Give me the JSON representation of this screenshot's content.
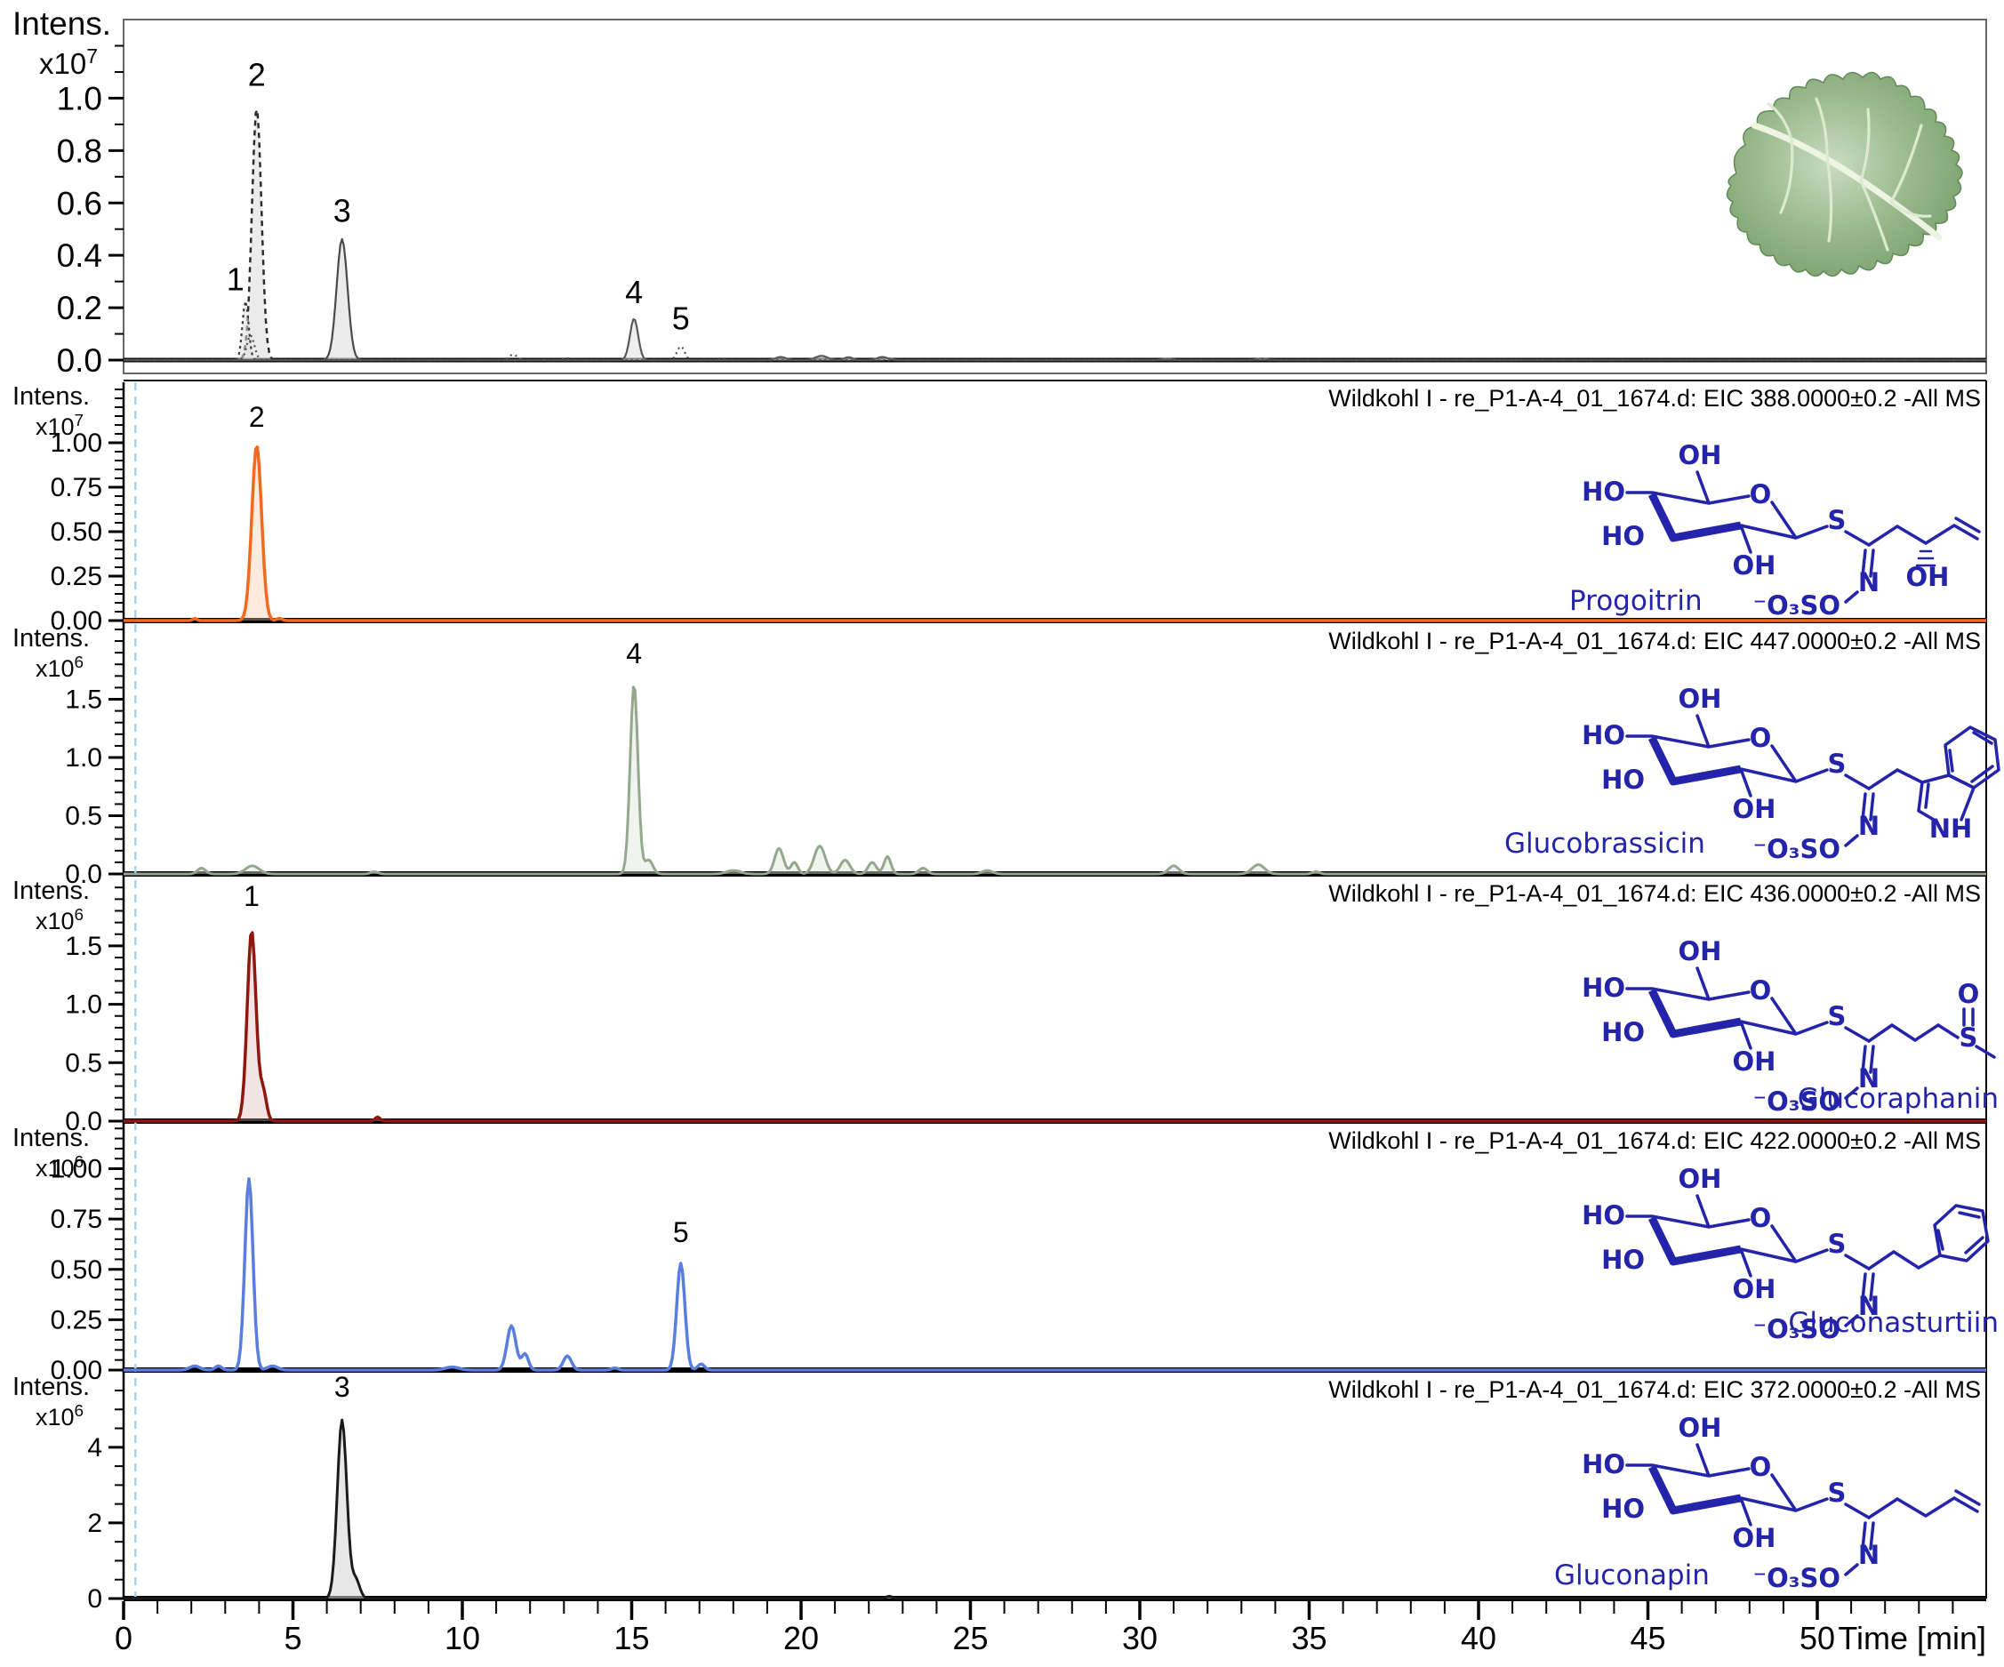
{
  "chart_data": {
    "type": "line",
    "description": "LC-MS extracted ion chromatograms (EIC) of glucosinolates in wild cabbage",
    "xaxis": {
      "label": "Time [min]",
      "range": [
        0,
        55
      ],
      "minor_step": 1,
      "ticks": [
        {
          "t": 0,
          "label": "0"
        },
        {
          "t": 5,
          "label": "5"
        },
        {
          "t": 10,
          "label": "10"
        },
        {
          "t": 15,
          "label": "15"
        },
        {
          "t": 20,
          "label": "20"
        },
        {
          "t": 25,
          "label": "25"
        },
        {
          "t": 30,
          "label": "30"
        },
        {
          "t": 35,
          "label": "35"
        },
        {
          "t": 40,
          "label": "40"
        },
        {
          "t": 45,
          "label": "45"
        },
        {
          "t": 50,
          "label": "50"
        }
      ]
    },
    "blue_marker_time": 0.35,
    "blue_marker_color": "#a6d3f2",
    "panels": [
      {
        "id": "overview",
        "axis_label": "Intens.",
        "unit_prefix": "x10",
        "unit_exp": "7",
        "minor": 0.1,
        "yticks": [
          {
            "v": 1.0,
            "label": "1.0"
          },
          {
            "v": 0.8,
            "label": "0.8"
          },
          {
            "v": 0.6,
            "label": "0.6"
          },
          {
            "v": 0.4,
            "label": "0.4"
          },
          {
            "v": 0.2,
            "label": "0.2"
          },
          {
            "v": 0.0,
            "label": "0.0"
          }
        ],
        "traces": [
          {
            "stroke": "#2c2c2c",
            "width": 2.5,
            "dash": "6 5",
            "fill": "rgba(222,222,222,0.6)",
            "peaks": [
              {
                "t": 3.93,
                "h": 0.965,
                "s": 0.14
              }
            ]
          },
          {
            "stroke": "#3a3a3a",
            "width": 2.2,
            "dash": "3 4",
            "fill": "rgba(222,222,222,0.55)",
            "peaks": [
              {
                "t": 3.6,
                "h": 0.225,
                "s": 0.09
              }
            ]
          },
          {
            "stroke": "#4a4a4a",
            "width": 2.2,
            "dash": "",
            "fill": "rgba(224,224,224,0.65)",
            "peaks": [
              {
                "t": 6.45,
                "h": 0.462,
                "s": 0.16
              },
              {
                "t": 22.6,
                "h": 0.006,
                "s": 0.12
              }
            ]
          },
          {
            "stroke": "#5a5a5a",
            "width": 2.2,
            "dash": "",
            "fill": "rgba(226,226,226,0.55)",
            "peaks": [
              {
                "t": 15.07,
                "h": 0.158,
                "s": 0.12
              },
              {
                "t": 19.4,
                "h": 0.012,
                "s": 0.15
              },
              {
                "t": 20.6,
                "h": 0.016,
                "s": 0.18
              },
              {
                "t": 21.4,
                "h": 0.011,
                "s": 0.12
              },
              {
                "t": 22.4,
                "h": 0.012,
                "s": 0.15
              },
              {
                "t": 30.8,
                "h": 0.005,
                "s": 0.15
              },
              {
                "t": 33.6,
                "h": 0.006,
                "s": 0.15
              }
            ]
          },
          {
            "stroke": "#4f4f4f",
            "width": 2.2,
            "dash": "2 4",
            "fill": "none",
            "peaks": [
              {
                "t": 3.75,
                "h": 0.095,
                "s": 0.11
              },
              {
                "t": 11.5,
                "h": 0.021,
                "s": 0.12
              },
              {
                "t": 13.1,
                "h": 0.007,
                "s": 0.1
              },
              {
                "t": 16.45,
                "h": 0.052,
                "s": 0.11
              },
              {
                "t": 17.6,
                "h": 0.006,
                "s": 0.1
              }
            ]
          }
        ],
        "peak_labels": [
          {
            "text": "1",
            "t": 3.3,
            "v": 0.24
          },
          {
            "text": "2",
            "t": 3.93,
            "v": 1.02
          },
          {
            "text": "3",
            "t": 6.45,
            "v": 0.5
          },
          {
            "text": "4",
            "t": 15.07,
            "v": 0.19
          },
          {
            "text": "5",
            "t": 16.45,
            "v": 0.09
          }
        ]
      },
      {
        "id": "progoitrin",
        "header": "Wildkohl I - re_P1-A-4_01_1674.d: EIC 388.0000±0.2 -All MS",
        "axis_label": "Intens.",
        "unit_prefix": "x10",
        "unit_exp": "7",
        "minor": 0.05,
        "yticks": [
          {
            "v": 1.0,
            "label": "1.00"
          },
          {
            "v": 0.75,
            "label": "0.75"
          },
          {
            "v": 0.5,
            "label": "0.50"
          },
          {
            "v": 0.25,
            "label": "0.25"
          },
          {
            "v": 0.0,
            "label": "0.00"
          }
        ],
        "traces": [
          {
            "stroke": "#f2691f",
            "width": 3.5,
            "dash": "",
            "fill": "rgba(250,206,168,0.38)",
            "peaks": [
              {
                "t": 2.1,
                "h": 0.012,
                "s": 0.06
              },
              {
                "t": 3.93,
                "h": 0.985,
                "s": 0.145
              },
              {
                "t": 4.6,
                "h": 0.012,
                "s": 0.08
              }
            ]
          }
        ],
        "peak_labels": [
          {
            "text": "2",
            "t": 3.93,
            "v": 1.05
          }
        ]
      },
      {
        "id": "glucobrassicin",
        "header": "Wildkohl I - re_P1-A-4_01_1674.d: EIC 447.0000±0.2 -All MS",
        "axis_label": "Intens.",
        "unit_prefix": "x10",
        "unit_exp": "6",
        "minor": 0.1,
        "yticks": [
          {
            "v": 1.5,
            "label": "1.5"
          },
          {
            "v": 1.0,
            "label": "1.0"
          },
          {
            "v": 0.5,
            "label": "0.5"
          },
          {
            "v": 0.0,
            "label": "0.0"
          }
        ],
        "traces": [
          {
            "stroke": "#93a88d",
            "width": 3,
            "dash": "",
            "fill": "rgba(222,229,218,0.45)",
            "peaks": [
              {
                "t": 2.3,
                "h": 0.05,
                "s": 0.12
              },
              {
                "t": 3.8,
                "h": 0.07,
                "s": 0.2
              },
              {
                "t": 7.4,
                "h": 0.02,
                "s": 0.1
              },
              {
                "t": 15.07,
                "h": 1.63,
                "s": 0.115
              },
              {
                "t": 15.5,
                "h": 0.12,
                "s": 0.12
              },
              {
                "t": 18.0,
                "h": 0.03,
                "s": 0.2
              },
              {
                "t": 19.35,
                "h": 0.22,
                "s": 0.13
              },
              {
                "t": 19.8,
                "h": 0.1,
                "s": 0.1
              },
              {
                "t": 20.55,
                "h": 0.24,
                "s": 0.16
              },
              {
                "t": 21.3,
                "h": 0.12,
                "s": 0.14
              },
              {
                "t": 22.1,
                "h": 0.1,
                "s": 0.12
              },
              {
                "t": 22.55,
                "h": 0.15,
                "s": 0.1
              },
              {
                "t": 23.6,
                "h": 0.05,
                "s": 0.12
              },
              {
                "t": 25.5,
                "h": 0.03,
                "s": 0.15
              },
              {
                "t": 31.0,
                "h": 0.07,
                "s": 0.15
              },
              {
                "t": 33.5,
                "h": 0.08,
                "s": 0.18
              },
              {
                "t": 35.2,
                "h": 0.02,
                "s": 0.1
              }
            ]
          }
        ],
        "peak_labels": [
          {
            "text": "4",
            "t": 15.07,
            "v": 1.75
          }
        ]
      },
      {
        "id": "glucoraphanin",
        "header": "Wildkohl I - re_P1-A-4_01_1674.d: EIC 436.0000±0.2 -All MS",
        "axis_label": "Intens.",
        "unit_prefix": "x10",
        "unit_exp": "6",
        "minor": 0.1,
        "yticks": [
          {
            "v": 1.5,
            "label": "1.5"
          },
          {
            "v": 1.0,
            "label": "1.0"
          },
          {
            "v": 0.5,
            "label": "0.5"
          },
          {
            "v": 0.0,
            "label": "0.0"
          }
        ],
        "traces": [
          {
            "stroke": "#8e1710",
            "width": 3.5,
            "dash": "",
            "fill": "rgba(216,178,173,0.35)",
            "peaks": [
              {
                "t": 3.78,
                "h": 1.63,
                "s": 0.13
              },
              {
                "t": 4.12,
                "h": 0.25,
                "s": 0.1
              },
              {
                "t": 7.5,
                "h": 0.035,
                "s": 0.07
              }
            ]
          }
        ],
        "peak_labels": [
          {
            "text": "1",
            "t": 3.78,
            "v": 1.78
          }
        ]
      },
      {
        "id": "gluconasturtiin",
        "header": "Wildkohl I - re_P1-A-4_01_1674.d: EIC 422.0000±0.2 -All MS",
        "axis_label": "Intens.",
        "unit_prefix": "x10",
        "unit_exp": "6",
        "minor": 0.05,
        "yticks": [
          {
            "v": 1.0,
            "label": "1.00"
          },
          {
            "v": 0.75,
            "label": "0.75"
          },
          {
            "v": 0.5,
            "label": "0.50"
          },
          {
            "v": 0.25,
            "label": "0.25"
          },
          {
            "v": 0.0,
            "label": "0.00"
          }
        ],
        "traces": [
          {
            "stroke": "#5a7de0",
            "width": 3.5,
            "dash": "",
            "fill": "none",
            "peaks": [
              {
                "t": 2.1,
                "h": 0.02,
                "s": 0.15
              },
              {
                "t": 2.8,
                "h": 0.02,
                "s": 0.1
              },
              {
                "t": 3.7,
                "h": 0.95,
                "s": 0.12
              },
              {
                "t": 4.4,
                "h": 0.02,
                "s": 0.15
              },
              {
                "t": 9.7,
                "h": 0.015,
                "s": 0.2
              },
              {
                "t": 11.45,
                "h": 0.22,
                "s": 0.13
              },
              {
                "t": 11.85,
                "h": 0.08,
                "s": 0.1
              },
              {
                "t": 13.1,
                "h": 0.07,
                "s": 0.12
              },
              {
                "t": 14.5,
                "h": 0.01,
                "s": 0.1
              },
              {
                "t": 16.45,
                "h": 0.53,
                "s": 0.12
              },
              {
                "t": 17.05,
                "h": 0.03,
                "s": 0.1
              }
            ]
          }
        ],
        "peak_labels": [
          {
            "text": "5",
            "t": 16.45,
            "v": 0.6
          }
        ]
      },
      {
        "id": "gluconapin",
        "header": "Wildkohl I - re_P1-A-4_01_1674.d: EIC 372.0000±0.2 -All MS",
        "axis_label": "Intens.",
        "unit_prefix": "x10",
        "unit_exp": "6",
        "minor": 0.5,
        "yticks": [
          {
            "v": 4,
            "label": "4"
          },
          {
            "v": 2,
            "label": "2"
          },
          {
            "v": 0,
            "label": "0"
          }
        ],
        "traces": [
          {
            "stroke": "#1b1b1b",
            "width": 3,
            "dash": "",
            "fill": "rgba(212,212,212,0.55)",
            "peaks": [
              {
                "t": 6.45,
                "h": 4.72,
                "s": 0.14
              },
              {
                "t": 6.85,
                "h": 0.5,
                "s": 0.12
              },
              {
                "t": 22.6,
                "h": 0.06,
                "s": 0.1
              }
            ]
          }
        ],
        "peak_labels": [
          {
            "text": "3",
            "t": 6.45,
            "v": 5.15
          }
        ]
      }
    ]
  },
  "structures": [
    {
      "name": "Progoitrin",
      "atoms": {
        "oh_top": "OH",
        "ho_a": "HO",
        "ho_b": "HO",
        "oh_c2": "OH",
        "ring_o": "O",
        "s": "S",
        "n": "N",
        "sulfate": "⁻O₃SO",
        "side_oh": "OH"
      }
    },
    {
      "name": "Glucobrassicin",
      "atoms": {
        "oh_top": "OH",
        "ho_a": "HO",
        "ho_b": "HO",
        "oh_c2": "OH",
        "ring_o": "O",
        "s": "S",
        "n": "N",
        "sulfate": "⁻O₃SO",
        "nh": "NH"
      }
    },
    {
      "name": "Glucoraphanin",
      "atoms": {
        "oh_top": "OH",
        "ho_a": "HO",
        "ho_b": "HO",
        "oh_c2": "OH",
        "ring_o": "O",
        "s": "S",
        "n": "N",
        "sulfate": "⁻O₃SO",
        "so_s": "S",
        "so_o": "O"
      }
    },
    {
      "name": "Gluconasturtiin",
      "atoms": {
        "oh_top": "OH",
        "ho_a": "HO",
        "ho_b": "HO",
        "oh_c2": "OH",
        "ring_o": "O",
        "s": "S",
        "n": "N",
        "sulfate": "⁻O₃SO"
      }
    },
    {
      "name": "Gluconapin",
      "atoms": {
        "oh_top": "OH",
        "ho_a": "HO",
        "ho_b": "HO",
        "oh_c2": "OH",
        "ring_o": "O",
        "s": "S",
        "n": "N",
        "sulfate": "⁻O₃SO"
      }
    }
  ]
}
